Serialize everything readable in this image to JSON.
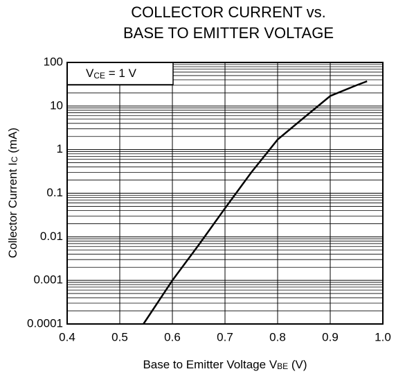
{
  "chart_data": {
    "type": "line",
    "title": [
      "COLLECTOR CURRENT vs.",
      "BASE TO EMITTER VOLTAGE"
    ],
    "xlabel": {
      "text": "Base to Emitter Voltage  V",
      "sub": "BE",
      "unit": " (V)"
    },
    "ylabel": {
      "text": "Collector Current  I",
      "sub": "C",
      "unit": " (mA)"
    },
    "annotation": {
      "text": "V",
      "sub": "CE",
      "rest": " = 1 V"
    },
    "x": [
      0.545,
      0.6,
      0.65,
      0.7,
      0.75,
      0.8,
      0.85,
      0.9,
      0.95,
      0.97
    ],
    "series": [
      {
        "name": "IC",
        "color": "#000000",
        "values": [
          0.0001,
          0.001,
          0.0065,
          0.045,
          0.3,
          1.7,
          5.4,
          17,
          30,
          37
        ]
      }
    ],
    "xlim": [
      0.4,
      1
    ],
    "xticks": [
      0.4,
      0.5,
      0.6,
      0.7,
      0.8,
      0.9,
      {
        "value": 1,
        "label": "1.0"
      }
    ],
    "ylim": [
      0.0001,
      100
    ],
    "yticks": [
      100,
      10,
      1,
      0.1,
      0.01,
      0.001,
      0.0001
    ],
    "yscale": "log",
    "grid": true
  }
}
